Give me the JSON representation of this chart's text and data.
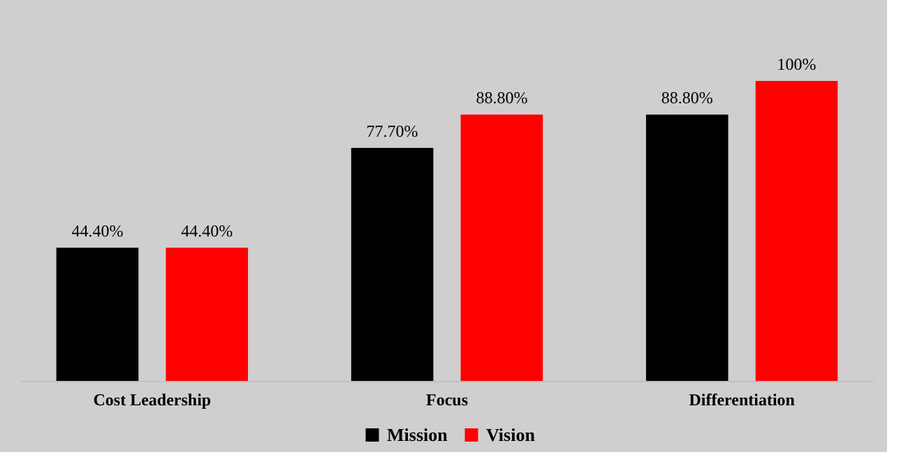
{
  "chart_data": {
    "type": "bar",
    "categories": [
      "Cost Leadership",
      "Focus",
      "Differentiation"
    ],
    "series": [
      {
        "name": "Mission",
        "color": "#000000",
        "values": [
          44.4,
          77.7,
          88.8
        ],
        "value_labels": [
          "44.40%",
          "77.70%",
          "88.80%"
        ]
      },
      {
        "name": "Vision",
        "color": "#ff0000",
        "values": [
          44.4,
          88.8,
          100
        ],
        "value_labels": [
          "44.40%",
          "88.80%",
          "100%"
        ]
      }
    ],
    "legend": "bottom",
    "grid": false
  }
}
